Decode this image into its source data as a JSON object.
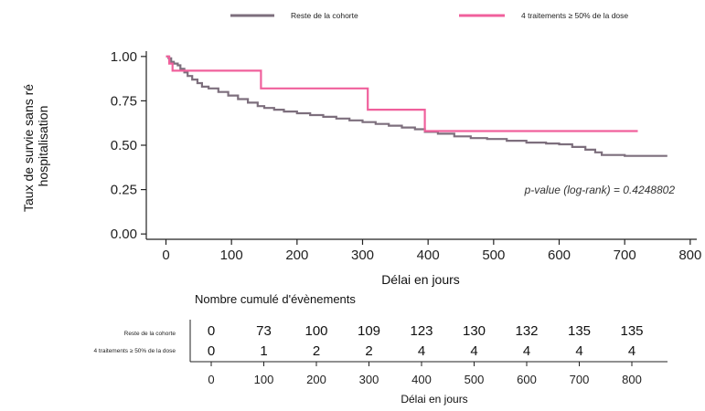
{
  "chart_data": {
    "type": "line",
    "step": true,
    "legend_position": "top",
    "xlabel": "Délai en jours",
    "ylabel": "Taux de survie sans ré hospitalisation",
    "ylabel_lines": [
      "Taux de survie sans ré",
      "hospitalisation"
    ],
    "xlim": [
      -30,
      810
    ],
    "ylim": [
      -0.03,
      1.03
    ],
    "x_ticks": [
      0,
      100,
      200,
      300,
      400,
      500,
      600,
      700,
      800
    ],
    "y_ticks": [
      "0.00",
      "0.25",
      "0.50",
      "0.75",
      "1.00"
    ],
    "grid": false,
    "annotation": "p-value (log-rank) = 0.4248802",
    "series": [
      {
        "name": "Reste de la cohorte",
        "color": "#7d6f7d",
        "points": [
          [
            0,
            1.0
          ],
          [
            4,
            0.99
          ],
          [
            8,
            0.97
          ],
          [
            12,
            0.96
          ],
          [
            18,
            0.95
          ],
          [
            22,
            0.93
          ],
          [
            28,
            0.91
          ],
          [
            33,
            0.89
          ],
          [
            40,
            0.87
          ],
          [
            48,
            0.85
          ],
          [
            55,
            0.83
          ],
          [
            65,
            0.82
          ],
          [
            80,
            0.8
          ],
          [
            95,
            0.78
          ],
          [
            110,
            0.76
          ],
          [
            125,
            0.74
          ],
          [
            140,
            0.72
          ],
          [
            150,
            0.71
          ],
          [
            165,
            0.7
          ],
          [
            180,
            0.69
          ],
          [
            200,
            0.68
          ],
          [
            220,
            0.67
          ],
          [
            240,
            0.66
          ],
          [
            260,
            0.65
          ],
          [
            280,
            0.64
          ],
          [
            300,
            0.63
          ],
          [
            320,
            0.62
          ],
          [
            340,
            0.61
          ],
          [
            360,
            0.6
          ],
          [
            380,
            0.59
          ],
          [
            395,
            0.575
          ],
          [
            415,
            0.565
          ],
          [
            440,
            0.55
          ],
          [
            465,
            0.54
          ],
          [
            490,
            0.535
          ],
          [
            520,
            0.525
          ],
          [
            550,
            0.515
          ],
          [
            580,
            0.51
          ],
          [
            600,
            0.505
          ],
          [
            620,
            0.49
          ],
          [
            640,
            0.475
          ],
          [
            655,
            0.46
          ],
          [
            665,
            0.445
          ],
          [
            700,
            0.44
          ],
          [
            765,
            0.44
          ]
        ]
      },
      {
        "name": "4 traitements ≥ 50% de la dose",
        "color": "#f0609c",
        "points": [
          [
            0,
            1.0
          ],
          [
            5,
            0.96
          ],
          [
            10,
            0.92
          ],
          [
            145,
            0.92
          ],
          [
            145,
            0.82
          ],
          [
            308,
            0.82
          ],
          [
            308,
            0.7
          ],
          [
            395,
            0.7
          ],
          [
            395,
            0.58
          ],
          [
            720,
            0.58
          ]
        ]
      }
    ]
  },
  "risk_table": {
    "title": "Nombre cumulé d'évènements",
    "xlabel": "Délai en jours",
    "x_ticks": [
      "0",
      "100",
      "200",
      "300",
      "400",
      "500",
      "600",
      "700",
      "800"
    ],
    "rows": [
      {
        "label": "Reste de la cohorte",
        "values": [
          "0",
          "73",
          "100",
          "109",
          "123",
          "130",
          "132",
          "135",
          "135"
        ]
      },
      {
        "label": "4 traitements ≥ 50% de la dose",
        "values": [
          "0",
          "1",
          "2",
          "2",
          "4",
          "4",
          "4",
          "4",
          "4"
        ]
      }
    ]
  }
}
